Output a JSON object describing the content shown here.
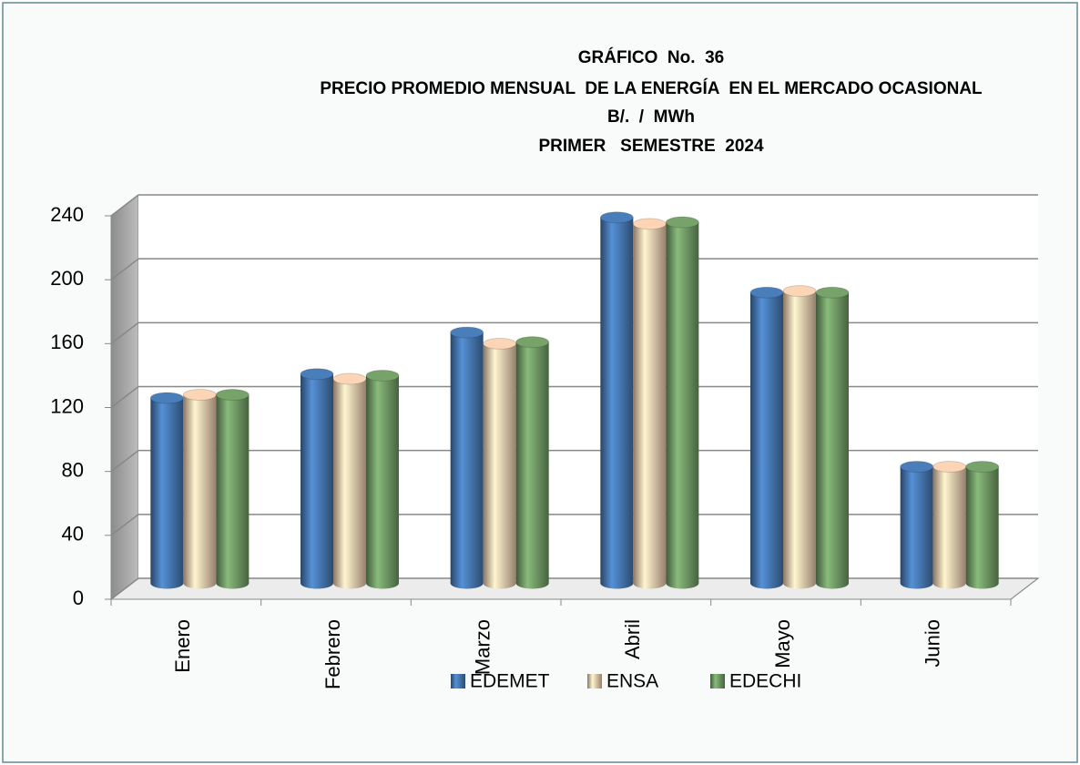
{
  "chart_data": {
    "type": "bar3d",
    "title": "GRÁFICO  No.  36",
    "subtitle": [
      "PRECIO PROMEDIO MENSUAL  DE LA ENERGÍA  EN EL MERCADO OCASIONAL",
      "B/.  /  MWh",
      "PRIMER   SEMESTRE  2024"
    ],
    "categories": [
      "Enero",
      "Febrero",
      "Marzo",
      "Abril",
      "Mayo",
      "Junio"
    ],
    "series": [
      {
        "name": "EDEMET",
        "color": "#4a7ebb",
        "values": [
          116,
          131,
          157,
          229,
          182,
          73
        ]
      },
      {
        "name": "ENSA",
        "color": "#fbd5b5",
        "values": [
          118,
          128,
          150,
          225,
          183,
          73
        ]
      },
      {
        "name": "EDECHI",
        "color": "#77a36b",
        "values": [
          118,
          130,
          151,
          226,
          182,
          73
        ]
      }
    ],
    "ylim": [
      0,
      240
    ],
    "yticks": [
      0,
      40,
      80,
      120,
      160,
      200,
      240
    ],
    "grid": true
  }
}
